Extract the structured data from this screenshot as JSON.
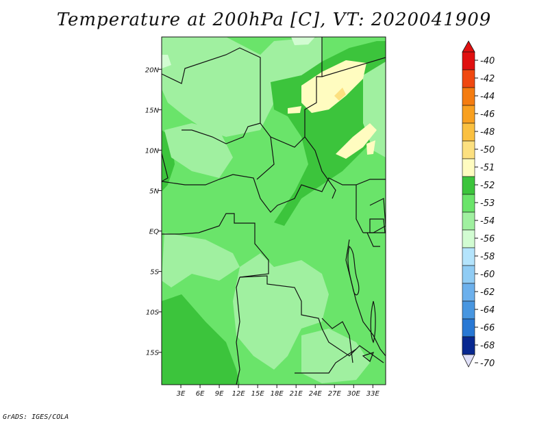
{
  "chart_data": {
    "type": "heatmap",
    "title": "Temperature at 200hPa [C], VT: 2020041909",
    "xlabel": "",
    "ylabel": "",
    "x_ticks": [
      "3E",
      "6E",
      "9E",
      "12E",
      "15E",
      "18E",
      "21E",
      "24E",
      "27E",
      "30E",
      "33E"
    ],
    "y_ticks": [
      "20N",
      "15N",
      "10N",
      "5N",
      "EQ",
      "5S",
      "10S",
      "15S"
    ],
    "x_tick_values": [
      3,
      6,
      9,
      12,
      15,
      18,
      21,
      24,
      27,
      30,
      33
    ],
    "y_tick_values": [
      20,
      15,
      10,
      5,
      0,
      -5,
      -10,
      -15
    ],
    "xlim": [
      0,
      35
    ],
    "ylim": [
      -19,
      24
    ],
    "colorbar": {
      "levels": [
        "-40",
        "-42",
        "-44",
        "-46",
        "-48",
        "-50",
        "-51",
        "-52",
        "-53",
        "-54",
        "-56",
        "-58",
        "-60",
        "-62",
        "-64",
        "-66",
        "-68",
        "-70"
      ],
      "colors": [
        "#e01010",
        "#f04810",
        "#f47c10",
        "#f8a020",
        "#fac040",
        "#fce080",
        "#fffcc0",
        "#3cc43c",
        "#6ae46a",
        "#a0f0a0",
        "#d2fcd2",
        "#b4e4fc",
        "#90ccf4",
        "#6cb0ec",
        "#4896e0",
        "#2878d4",
        "#1050b4",
        "#082890"
      ],
      "over_color": "#e01010",
      "under_color": "#e0e0f8"
    },
    "regions": [
      {
        "label": "-53",
        "color": "#6ae46a",
        "note": "background (most of domain)"
      },
      {
        "label": "-52",
        "color": "#3cc43c"
      },
      {
        "label": "-54",
        "color": "#a0f0a0"
      },
      {
        "label": "-51",
        "color": "#fffcc0"
      },
      {
        "label": "-50",
        "color": "#fce080"
      },
      {
        "label": "-56",
        "color": "#d2fcd2"
      }
    ]
  },
  "credit": "GrADS: IGES/COLA"
}
